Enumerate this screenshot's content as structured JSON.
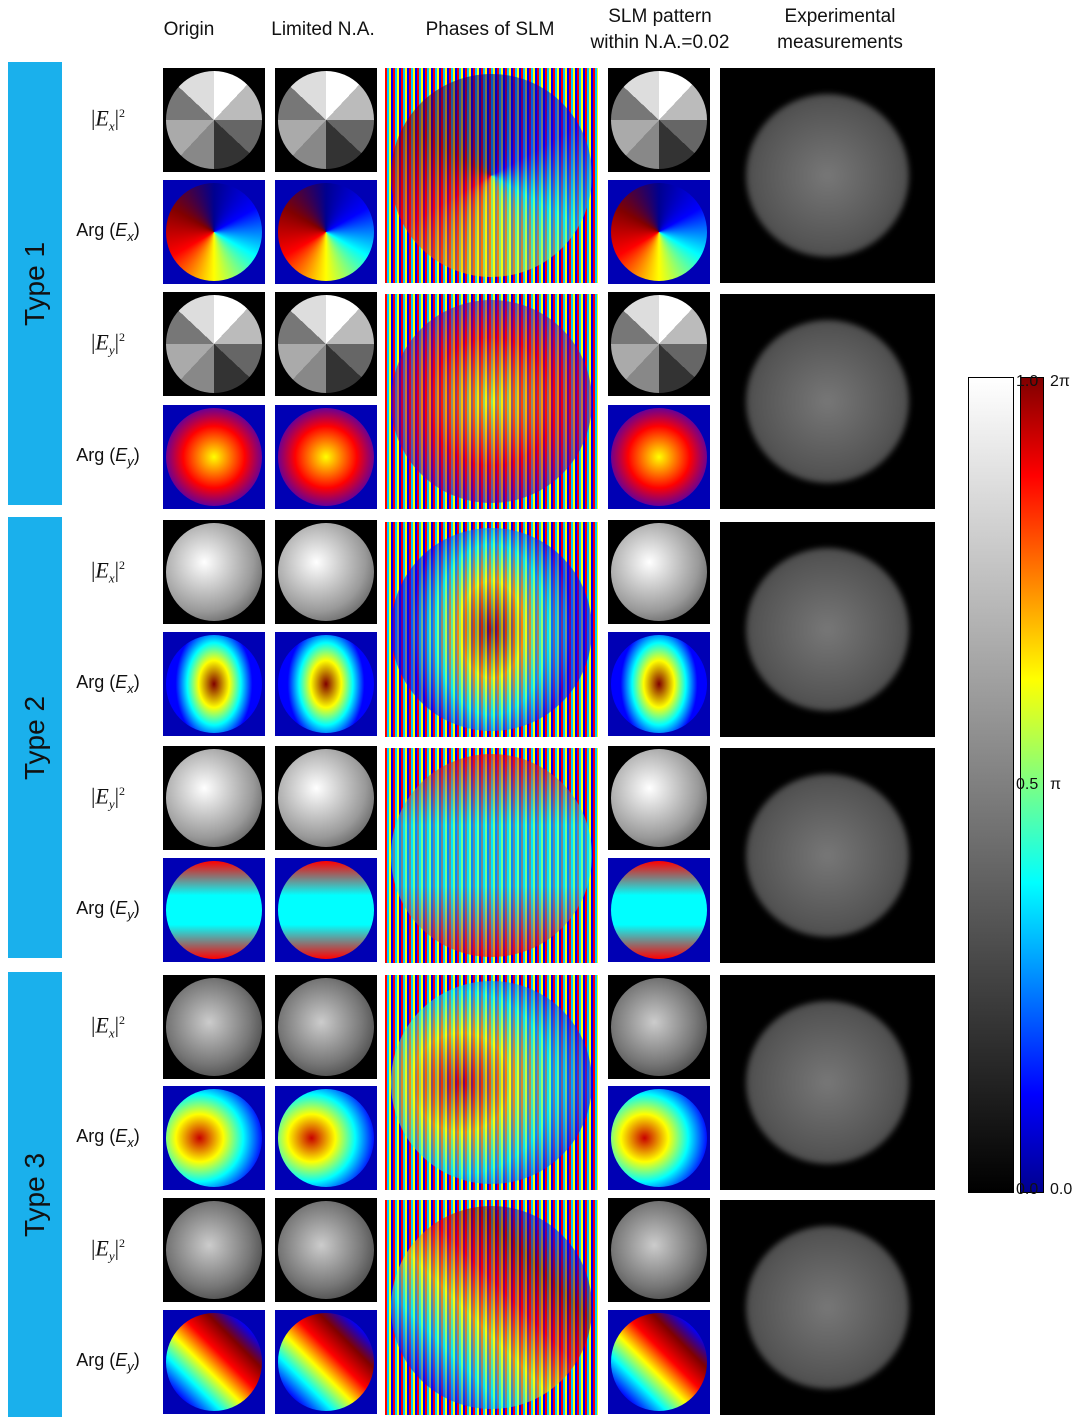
{
  "header": {
    "columns": [
      [
        "Origin"
      ],
      [
        "Limited N.A."
      ],
      [
        "Phases of SLM"
      ],
      [
        "SLM pattern",
        "within N.A.=0.02"
      ],
      [
        "Experimental",
        "measurements"
      ]
    ]
  },
  "groups": [
    {
      "label": "Type 1",
      "rows": [
        {
          "before": "|",
          "symbol": "E",
          "sub": "x",
          "after": "|",
          "sup": "2"
        },
        {
          "before": "Arg (",
          "symbol": "E",
          "sub": "x",
          "after": ")"
        },
        {
          "before": "|",
          "symbol": "E",
          "sub": "y",
          "after": "|",
          "sup": "2"
        },
        {
          "before": "Arg (",
          "symbol": "E",
          "sub": "y",
          "after": ")"
        }
      ]
    },
    {
      "label": "Type 2",
      "rows": [
        {
          "before": "|",
          "symbol": "E",
          "sub": "x",
          "after": "|",
          "sup": "2"
        },
        {
          "before": "Arg (",
          "symbol": "E",
          "sub": "x",
          "after": ")"
        },
        {
          "before": "|",
          "symbol": "E",
          "sub": "y",
          "after": "|",
          "sup": "2"
        },
        {
          "before": "Arg (",
          "symbol": "E",
          "sub": "y",
          "after": ")"
        }
      ]
    },
    {
      "label": "Type 3",
      "rows": [
        {
          "before": "|",
          "symbol": "E",
          "sub": "x",
          "after": "|",
          "sup": "2"
        },
        {
          "before": "Arg (",
          "symbol": "E",
          "sub": "x",
          "after": ")"
        },
        {
          "before": "|",
          "symbol": "E",
          "sub": "y",
          "after": "|",
          "sup": "2"
        },
        {
          "before": "Arg (",
          "symbol": "E",
          "sub": "y",
          "after": ")"
        }
      ]
    }
  ],
  "colorbars": {
    "intensity": [
      "1.0",
      "0.5",
      "0.0"
    ],
    "phase": [
      "2π",
      "π",
      "0.0"
    ]
  }
}
